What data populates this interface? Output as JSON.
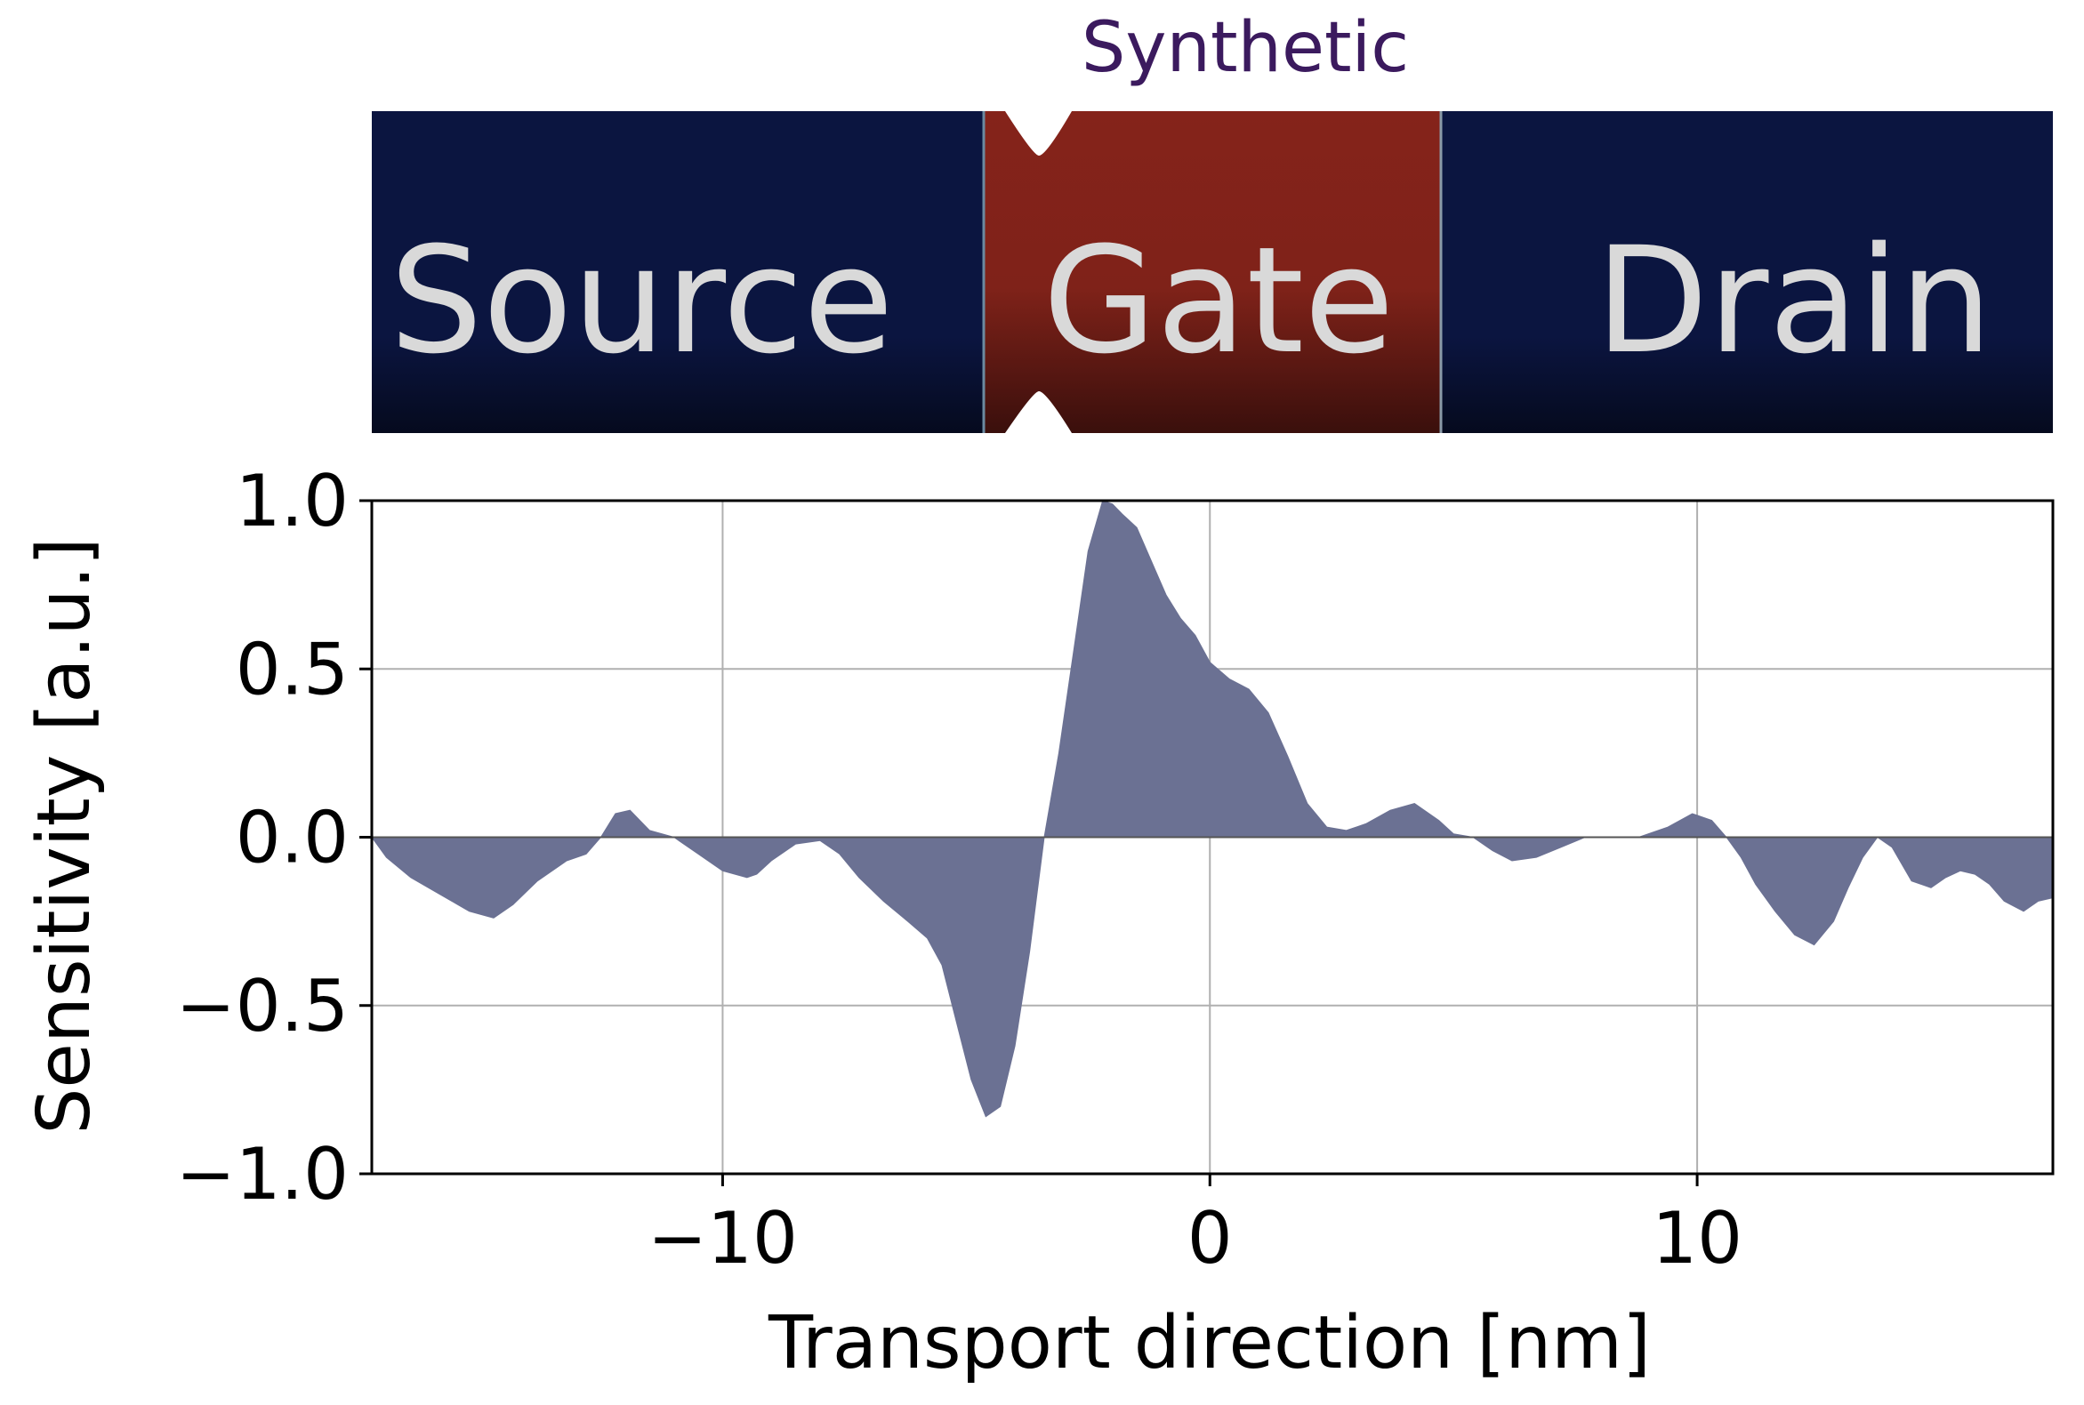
{
  "device": {
    "title": "Synthetic",
    "regions": [
      {
        "label": "Source",
        "color": "#0b1540"
      },
      {
        "label": "Gate",
        "color": "#7f2219"
      },
      {
        "label": "Drain",
        "color": "#0b1540"
      }
    ],
    "title_color": "#3b1a5e",
    "label_color": "#d9d9d9"
  },
  "chart_data": {
    "type": "area",
    "title": "",
    "xlabel": "Transport direction [nm]",
    "ylabel": "Sensitivity [a.u.]",
    "xlim": [
      -17.2,
      17.3
    ],
    "ylim": [
      -1.0,
      1.0
    ],
    "xticks": [
      -10,
      0,
      10
    ],
    "xtick_labels": [
      "−10",
      "0",
      "10"
    ],
    "yticks": [
      -1.0,
      -0.5,
      0.0,
      0.5,
      1.0
    ],
    "ytick_labels": [
      "−1.0",
      "−0.5",
      "0.0",
      "0.5",
      "1.0"
    ],
    "grid": true,
    "fill_color": "#6b7193",
    "baseline": 0.0,
    "series": [
      {
        "x": [
          -17.2,
          -16.9,
          -16.4,
          -15.8,
          -15.2,
          -14.7,
          -14.3,
          -13.8,
          -13.2,
          -12.8,
          -12.5,
          -12.2,
          -11.9,
          -11.5,
          -11.0,
          -10.5,
          -10.0,
          -9.5,
          -9.3,
          -9.0,
          -8.5,
          -8.0,
          -7.6,
          -7.2,
          -6.7,
          -6.2,
          -5.8,
          -5.5,
          -5.2,
          -4.9,
          -4.6,
          -4.3,
          -4.0,
          -3.7,
          -3.4,
          -3.1,
          -2.8,
          -2.5,
          -2.2,
          -2.0,
          -1.8,
          -1.5,
          -1.2,
          -0.9,
          -0.6,
          -0.3,
          0.0,
          0.4,
          0.8,
          1.2,
          1.6,
          2.0,
          2.4,
          2.8,
          3.2,
          3.7,
          4.2,
          4.7,
          5.0,
          5.4,
          5.8,
          6.2,
          6.7,
          7.2,
          7.7,
          8.2,
          8.8,
          9.4,
          9.9,
          10.3,
          10.6,
          10.9,
          11.2,
          11.6,
          12.0,
          12.4,
          12.8,
          13.1,
          13.4,
          13.7,
          14.0,
          14.4,
          14.8,
          15.1,
          15.4,
          15.7,
          16.0,
          16.3,
          16.7,
          17.0,
          17.3
        ],
        "y": [
          0.0,
          -0.06,
          -0.12,
          -0.17,
          -0.22,
          -0.24,
          -0.2,
          -0.13,
          -0.07,
          -0.05,
          0.0,
          0.07,
          0.08,
          0.02,
          0.0,
          -0.05,
          -0.1,
          -0.12,
          -0.11,
          -0.07,
          -0.02,
          -0.01,
          -0.05,
          -0.12,
          -0.19,
          -0.25,
          -0.3,
          -0.38,
          -0.55,
          -0.72,
          -0.83,
          -0.8,
          -0.62,
          -0.34,
          0.0,
          0.25,
          0.55,
          0.85,
          1.0,
          0.99,
          0.96,
          0.92,
          0.82,
          0.72,
          0.65,
          0.6,
          0.52,
          0.47,
          0.44,
          0.37,
          0.24,
          0.1,
          0.03,
          0.02,
          0.04,
          0.08,
          0.1,
          0.05,
          0.01,
          0.0,
          -0.04,
          -0.07,
          -0.06,
          -0.03,
          0.0,
          0.0,
          0.0,
          0.03,
          0.07,
          0.05,
          0.0,
          -0.06,
          -0.14,
          -0.22,
          -0.29,
          -0.32,
          -0.25,
          -0.15,
          -0.06,
          0.0,
          -0.03,
          -0.13,
          -0.15,
          -0.12,
          -0.1,
          -0.11,
          -0.14,
          -0.19,
          -0.22,
          -0.19,
          -0.18
        ]
      }
    ]
  }
}
